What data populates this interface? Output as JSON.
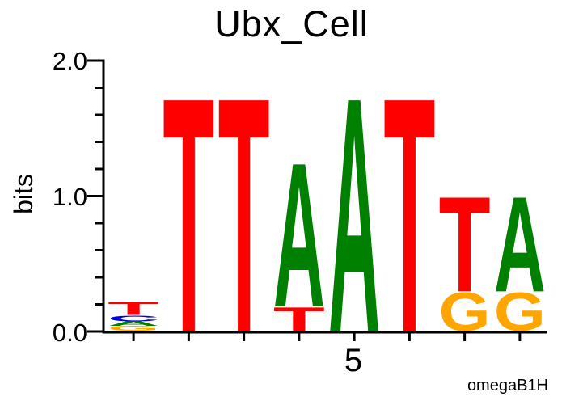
{
  "chart_data": {
    "type": "sequence-logo",
    "title": "Ubx_Cell",
    "attribution": "omegaB1H",
    "y_axis": {
      "label": "bits",
      "range": [
        0.0,
        2.0
      ],
      "ticks": [
        {
          "label": "2.0",
          "bits": 2.0
        },
        {
          "label": "1.0",
          "bits": 1.0
        },
        {
          "label": "0.0",
          "bits": 0.0
        }
      ],
      "minor_ticks_bits": [
        0.2,
        0.4,
        0.6,
        0.8,
        1.2,
        1.4,
        1.6,
        1.8
      ]
    },
    "x_axis": {
      "tick_positions": [
        1,
        2,
        3,
        4,
        5,
        6,
        7,
        8
      ],
      "labeled_ticks": [
        {
          "label": "5",
          "position": 5
        }
      ]
    },
    "colors": {
      "A": "#008000",
      "C": "#0000EE",
      "G": "#FFA500",
      "T": "#FF0000",
      "axis": "#000000"
    },
    "positions": [
      {
        "position": 1,
        "stack": [
          {
            "base": "G",
            "bits": 0.035
          },
          {
            "base": "A",
            "bits": 0.035
          },
          {
            "base": "C",
            "bits": 0.045
          },
          {
            "base": "T",
            "bits": 0.1
          }
        ]
      },
      {
        "position": 2,
        "stack": [
          {
            "base": "T",
            "bits": 1.77
          }
        ]
      },
      {
        "position": 3,
        "stack": [
          {
            "base": "T",
            "bits": 1.77
          }
        ]
      },
      {
        "position": 4,
        "stack": [
          {
            "base": "T",
            "bits": 0.18
          },
          {
            "base": "A",
            "bits": 1.09
          }
        ]
      },
      {
        "position": 5,
        "stack": [
          {
            "base": "A",
            "bits": 1.77
          }
        ]
      },
      {
        "position": 6,
        "stack": [
          {
            "base": "T",
            "bits": 1.77
          }
        ]
      },
      {
        "position": 7,
        "stack": [
          {
            "base": "G",
            "bits": 0.29
          },
          {
            "base": "T",
            "bits": 0.72
          }
        ]
      },
      {
        "position": 8,
        "stack": [
          {
            "base": "G",
            "bits": 0.29
          },
          {
            "base": "A",
            "bits": 0.72
          }
        ]
      }
    ]
  }
}
